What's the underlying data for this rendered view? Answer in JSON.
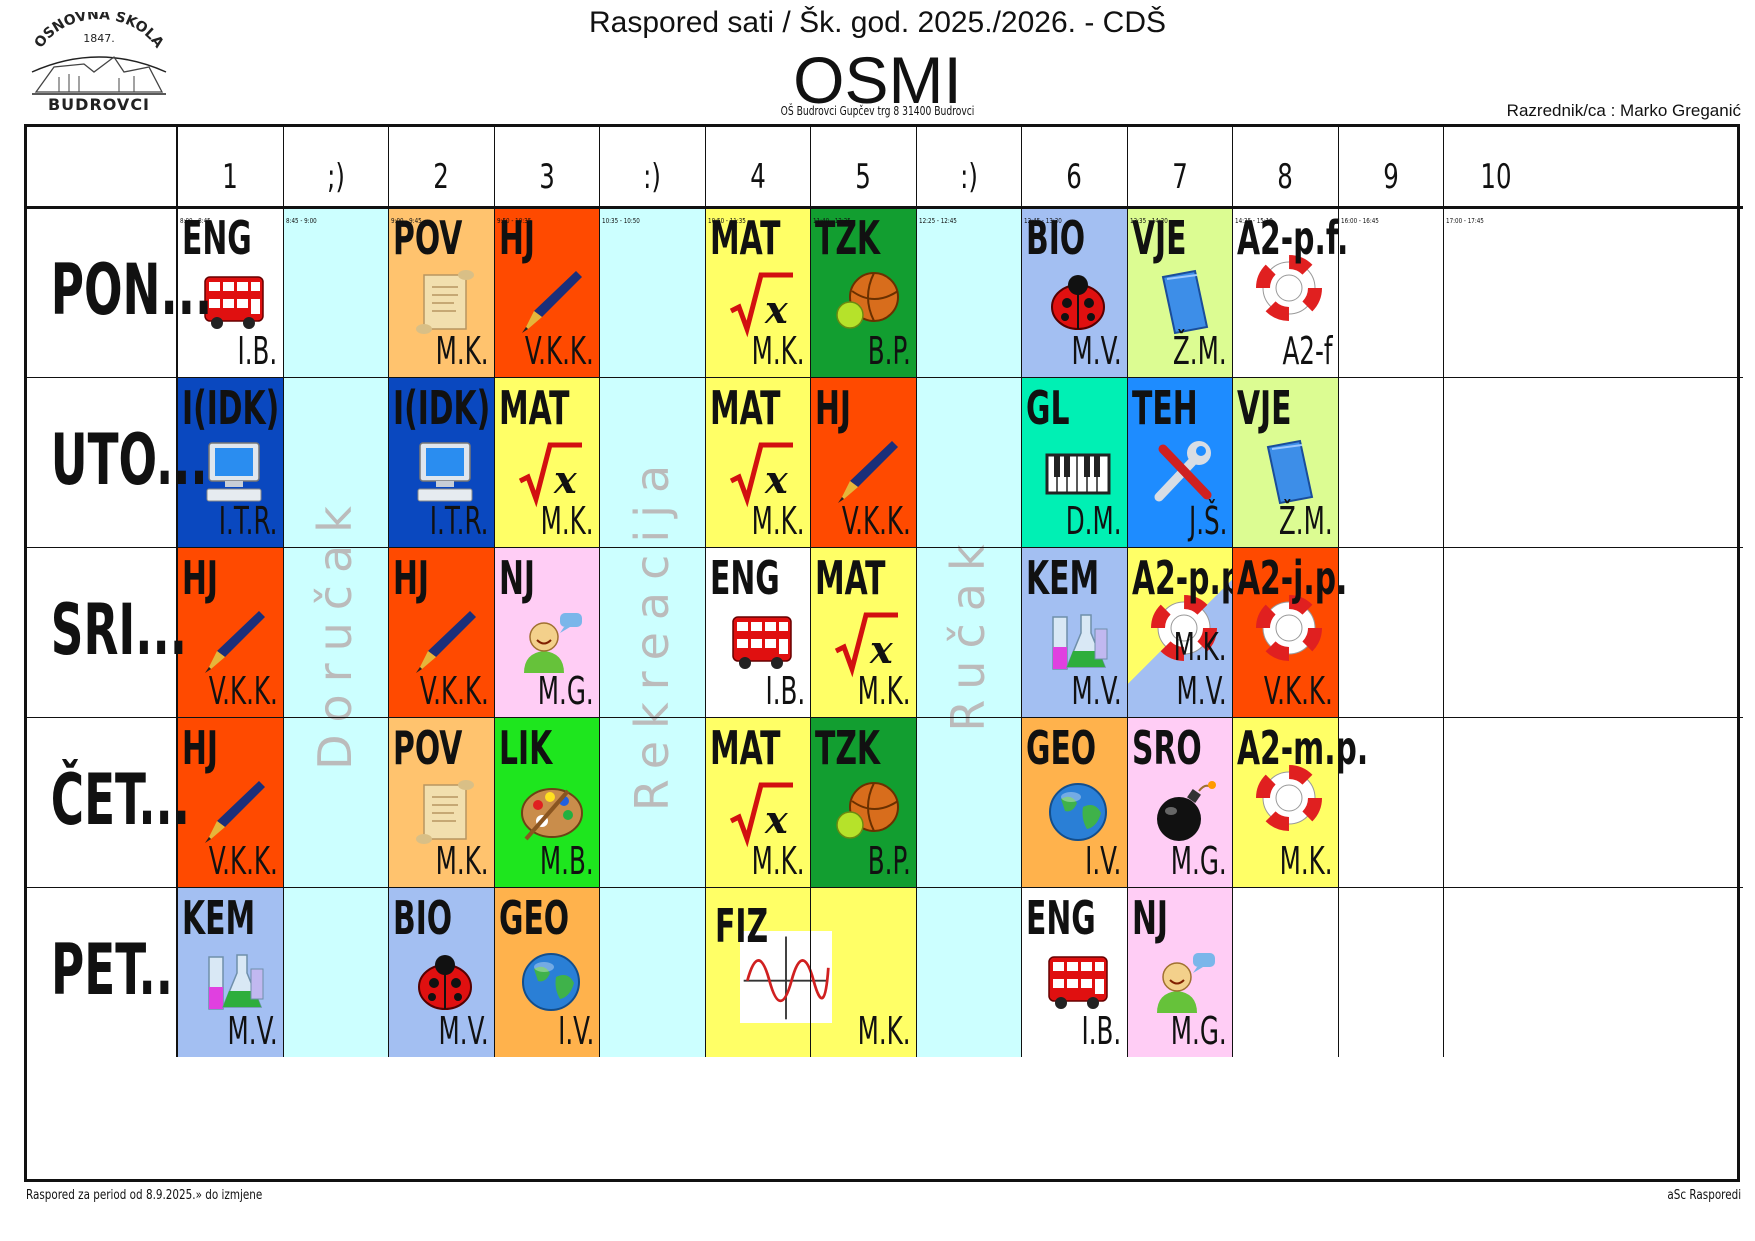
{
  "header": {
    "title": "Raspored sati / Šk. god. 2025./2026. - CDŠ",
    "class_name": "OSMI",
    "address": "OŠ Budrovci  Gupčev trg 8  31400 Budrovci",
    "class_teacher": "Razrednik/ca : Marko Greganić"
  },
  "logo": {
    "top_text": "OSNOVNA ŠKOLA",
    "year": "1847.",
    "bottom_text": "BUDROVCI"
  },
  "footer": {
    "left": "Raspored za period od 8.9.2025.» do izmjene",
    "right": "aSc Rasporedi"
  },
  "columns": [
    {
      "label": "1",
      "time": "8:00 - 8:45"
    },
    {
      "label": ";)",
      "time": "8:45 - 9:00"
    },
    {
      "label": "2",
      "time": "9:00 - 9:45"
    },
    {
      "label": "3",
      "time": "9:50 - 10:35"
    },
    {
      "label": ":)",
      "time": "10:35 - 10:50"
    },
    {
      "label": "4",
      "time": "10:50 - 11:35"
    },
    {
      "label": "5",
      "time": "11:40 - 12:25"
    },
    {
      "label": ":)",
      "time": "12:25 - 12:45"
    },
    {
      "label": "6",
      "time": "12:45 - 13:30"
    },
    {
      "label": "7",
      "time": "13:35 - 14:20"
    },
    {
      "label": "8",
      "time": "14:25 - 15:10"
    },
    {
      "label": "9",
      "time": "16:00 - 16:45"
    },
    {
      "label": "10",
      "time": "17:00 - 17:45"
    }
  ],
  "days": [
    "PON...",
    "UTO...",
    "SRI...",
    "ČET...",
    "PET.."
  ],
  "breaks": [
    {
      "col": 1,
      "label": "Doručak"
    },
    {
      "col": 4,
      "label": "Rekreacija"
    },
    {
      "col": 7,
      "label": "Ručak"
    }
  ],
  "lessons": [
    {
      "day": 0,
      "col": 0,
      "span": 1,
      "subject": "ENG",
      "teacher": "I.B.",
      "color": "#ffffff",
      "icon": "bus-icon"
    },
    {
      "day": 0,
      "col": 2,
      "span": 1,
      "subject": "POV",
      "teacher": "M.K.",
      "color": "#ffc36e",
      "icon": "scroll-icon"
    },
    {
      "day": 0,
      "col": 3,
      "span": 1,
      "subject": "HJ",
      "teacher": "V.K.K.",
      "color": "#ff4a00",
      "icon": "pen-icon"
    },
    {
      "day": 0,
      "col": 5,
      "span": 1,
      "subject": "MAT",
      "teacher": "M.K.",
      "color": "#ffff66",
      "icon": "sqrt-icon"
    },
    {
      "day": 0,
      "col": 6,
      "span": 1,
      "subject": "TZK",
      "teacher": "B.P.",
      "color": "#129e30",
      "icon": "ball-icon"
    },
    {
      "day": 0,
      "col": 8,
      "span": 1,
      "subject": "BIO",
      "teacher": "M.V.",
      "color": "#a3bff2",
      "icon": "ladybug-icon"
    },
    {
      "day": 0,
      "col": 9,
      "span": 1,
      "subject": "VJE",
      "teacher": "Ž.M.",
      "color": "#dcfc92",
      "icon": "book-icon"
    },
    {
      "day": 0,
      "col": 10,
      "span": 1,
      "subject": "A2-p.f.",
      "teacher": "A2-f",
      "color": "#ffffff",
      "icon": "lifebuoy-icon"
    },
    {
      "day": 1,
      "col": 0,
      "span": 1,
      "subject": "I(IDK)",
      "teacher": "I.T.R.",
      "color": "#0a48bf",
      "icon": "computer-icon"
    },
    {
      "day": 1,
      "col": 2,
      "span": 1,
      "subject": "I(IDK)",
      "teacher": "I.T.R.",
      "color": "#0a48bf",
      "icon": "computer-icon"
    },
    {
      "day": 1,
      "col": 3,
      "span": 1,
      "subject": "MAT",
      "teacher": "M.K.",
      "color": "#ffff66",
      "icon": "sqrt-icon"
    },
    {
      "day": 1,
      "col": 5,
      "span": 1,
      "subject": "MAT",
      "teacher": "M.K.",
      "color": "#ffff66",
      "icon": "sqrt-icon"
    },
    {
      "day": 1,
      "col": 6,
      "span": 1,
      "subject": "HJ",
      "teacher": "V.K.K.",
      "color": "#ff4a00",
      "icon": "pen-icon"
    },
    {
      "day": 1,
      "col": 8,
      "span": 1,
      "subject": "GL",
      "teacher": "D.M.",
      "color": "#00f0b4",
      "icon": "piano-icon"
    },
    {
      "day": 1,
      "col": 9,
      "span": 1,
      "subject": "TEH",
      "teacher": "J.Š.",
      "color": "#1e8cff",
      "icon": "tools-icon"
    },
    {
      "day": 1,
      "col": 10,
      "span": 1,
      "subject": "VJE",
      "teacher": "Ž.M.",
      "color": "#dcfc92",
      "icon": "book-icon"
    },
    {
      "day": 2,
      "col": 0,
      "span": 1,
      "subject": "HJ",
      "teacher": "V.K.K.",
      "color": "#ff4a00",
      "icon": "pen-icon"
    },
    {
      "day": 2,
      "col": 2,
      "span": 1,
      "subject": "HJ",
      "teacher": "V.K.K.",
      "color": "#ff4a00",
      "icon": "pen-icon"
    },
    {
      "day": 2,
      "col": 3,
      "span": 1,
      "subject": "NJ",
      "teacher": "M.G.",
      "color": "#ffcdf5",
      "icon": "speaker-icon"
    },
    {
      "day": 2,
      "col": 5,
      "span": 1,
      "subject": "ENG",
      "teacher": "I.B.",
      "color": "#ffffff",
      "icon": "bus-icon"
    },
    {
      "day": 2,
      "col": 6,
      "span": 1,
      "subject": "MAT",
      "teacher": "M.K.",
      "color": "#ffff66",
      "icon": "sqrt-icon"
    },
    {
      "day": 2,
      "col": 8,
      "span": 1,
      "subject": "KEM",
      "teacher": "M.V.",
      "color": "#a3bff2",
      "icon": "flask-icon"
    },
    {
      "day": 2,
      "col": 9,
      "span": 1,
      "subject": "A2-p.p.",
      "teacher": "M.V.",
      "teacher2": "M.K.",
      "color": "#a3bff2",
      "color2": "#ffff66",
      "icon": "lifebuoy-icon"
    },
    {
      "day": 2,
      "col": 10,
      "span": 1,
      "subject": "A2-j.p.",
      "teacher": "V.K.K.",
      "color": "#ff4a00",
      "icon": "lifebuoy-icon"
    },
    {
      "day": 3,
      "col": 0,
      "span": 1,
      "subject": "HJ",
      "teacher": "V.K.K.",
      "color": "#ff4a00",
      "icon": "pen-icon"
    },
    {
      "day": 3,
      "col": 2,
      "span": 1,
      "subject": "POV",
      "teacher": "M.K.",
      "color": "#ffc36e",
      "icon": "scroll-icon"
    },
    {
      "day": 3,
      "col": 3,
      "span": 1,
      "subject": "LIK",
      "teacher": "M.B.",
      "color": "#1ee61e",
      "icon": "palette-icon"
    },
    {
      "day": 3,
      "col": 5,
      "span": 1,
      "subject": "MAT",
      "teacher": "M.K.",
      "color": "#ffff66",
      "icon": "sqrt-icon"
    },
    {
      "day": 3,
      "col": 6,
      "span": 1,
      "subject": "TZK",
      "teacher": "B.P.",
      "color": "#129e30",
      "icon": "ball-icon"
    },
    {
      "day": 3,
      "col": 8,
      "span": 1,
      "subject": "GEO",
      "teacher": "I.V.",
      "color": "#ffb24c",
      "icon": "globe-icon"
    },
    {
      "day": 3,
      "col": 9,
      "span": 1,
      "subject": "SRO",
      "teacher": "M.G.",
      "color": "#ffcdf5",
      "icon": "bomb-icon"
    },
    {
      "day": 3,
      "col": 10,
      "span": 1,
      "subject": "A2-m.p.",
      "teacher": "M.K.",
      "color": "#ffff66",
      "icon": "lifebuoy-icon"
    },
    {
      "day": 4,
      "col": 0,
      "span": 1,
      "subject": "KEM",
      "teacher": "M.V.",
      "color": "#a3bff2",
      "icon": "flask-icon"
    },
    {
      "day": 4,
      "col": 2,
      "span": 1,
      "subject": "BIO",
      "teacher": "M.V.",
      "color": "#a3bff2",
      "icon": "ladybug-icon"
    },
    {
      "day": 4,
      "col": 3,
      "span": 1,
      "subject": "GEO",
      "teacher": "I.V.",
      "color": "#ffb24c",
      "icon": "globe-icon"
    },
    {
      "day": 4,
      "col": 5,
      "span": 2,
      "subject": "FIZ",
      "teacher": "M.K.",
      "color": "#ffff66",
      "icon": "sine-graph-icon"
    },
    {
      "day": 4,
      "col": 8,
      "span": 1,
      "subject": "ENG",
      "teacher": "I.B.",
      "color": "#ffffff",
      "icon": "bus-icon"
    },
    {
      "day": 4,
      "col": 9,
      "span": 1,
      "subject": "NJ",
      "teacher": "M.G.",
      "color": "#ffcdf5",
      "icon": "speaker-icon"
    }
  ]
}
